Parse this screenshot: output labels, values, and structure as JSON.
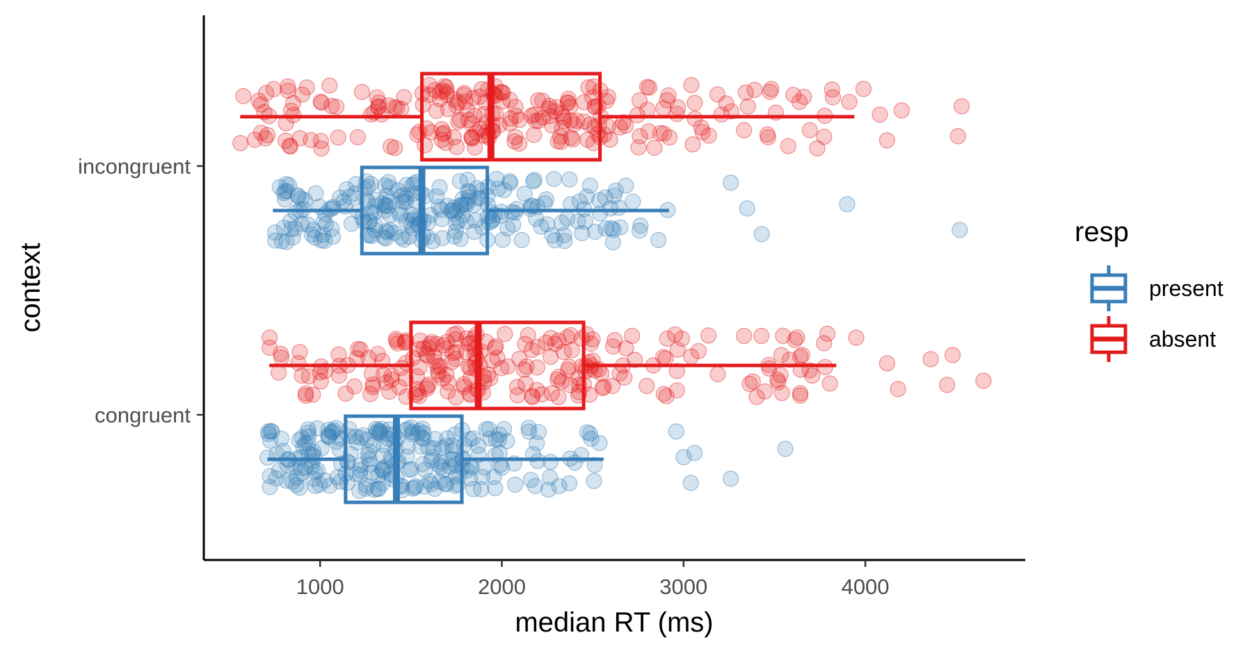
{
  "chart_data": {
    "type": "boxplot-jitter",
    "orientation": "horizontal",
    "title": "",
    "xlabel": "median RT (ms)",
    "ylabel": "context",
    "xlim": [
      360,
      4880
    ],
    "xticks": [
      1000,
      2000,
      3000,
      4000
    ],
    "xtick_labels": [
      "1000",
      "2000",
      "3000",
      "4000"
    ],
    "categories": [
      "incongruent",
      "congruent"
    ],
    "grid": false,
    "legend": {
      "title": "resp",
      "position": "right",
      "entries": [
        {
          "key": "present",
          "label": "present",
          "color": "#377EB8"
        },
        {
          "key": "absent",
          "label": "absent",
          "color": "#E41A1C"
        }
      ]
    },
    "series": [
      {
        "name": "absent",
        "color": "#E41A1C",
        "boxes": [
          {
            "category": "incongruent",
            "whisker_low": 560,
            "q1": 1560,
            "median": 1940,
            "q3": 2540,
            "whisker_high": 3940
          },
          {
            "category": "congruent",
            "whisker_low": 720,
            "q1": 1500,
            "median": 1870,
            "q3": 2450,
            "whisker_high": 3840
          }
        ]
      },
      {
        "name": "present",
        "color": "#377EB8",
        "boxes": [
          {
            "category": "incongruent",
            "whisker_low": 740,
            "q1": 1230,
            "median": 1560,
            "q3": 1920,
            "whisker_high": 2920
          },
          {
            "category": "congruent",
            "whisker_low": 710,
            "q1": 1140,
            "median": 1420,
            "q3": 1780,
            "whisker_high": 2560
          }
        ]
      }
    ],
    "outliers": [
      {
        "series": "absent",
        "category": "incongruent",
        "x": [
          3990,
          4080,
          4120,
          4200,
          4510,
          4530
        ]
      },
      {
        "series": "absent",
        "category": "congruent",
        "x": [
          3950,
          4120,
          4180,
          4360,
          4450,
          4480,
          4650
        ]
      },
      {
        "series": "present",
        "category": "incongruent",
        "x": [
          3260,
          3350,
          3430,
          3900,
          4520
        ]
      },
      {
        "series": "present",
        "category": "congruent",
        "x": [
          2960,
          3000,
          3040,
          3060,
          3260,
          3560
        ]
      }
    ]
  }
}
